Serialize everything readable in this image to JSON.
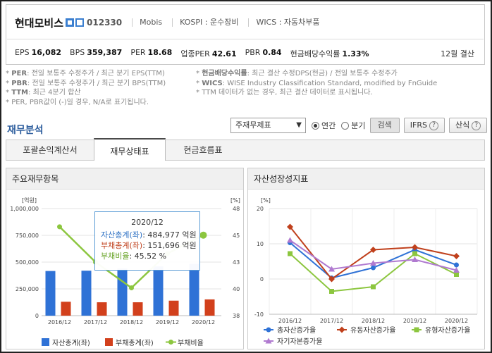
{
  "header": {
    "company": "현대모비스",
    "code": "012330",
    "meta": [
      "Mobis",
      "KOSPI : 운수장비",
      "WICS : 자동차부품"
    ],
    "metrics": [
      {
        "label": "EPS",
        "value": "16,082"
      },
      {
        "label": "BPS",
        "value": "359,387"
      },
      {
        "label": "PER",
        "value": "18.68"
      },
      {
        "label": "업종PER",
        "value": "42.61"
      },
      {
        "label": "PBR",
        "value": "0.84"
      },
      {
        "label": "현금배당수익률",
        "value": "1.33%"
      }
    ],
    "settlement": "12월 결산"
  },
  "notes": {
    "left": [
      {
        "key": "PER",
        "text": ": 전일 보통주 수정주가 / 최근 분기 EPS(TTM)"
      },
      {
        "key": "PBR",
        "text": ": 전일 보통주 수정주가 / 최근 분기 BPS(TTM)"
      },
      {
        "key": "TTM",
        "text": ": 최근 4분기 합산"
      },
      {
        "key": "",
        "text": "PER, PBR값이 (-)일 경우, N/A로 표기됩니다."
      }
    ],
    "right": [
      {
        "key": "현금배당수익률",
        "text": ": 최근 결산 수정DPS(현금) / 전일 보통주 수정주가"
      },
      {
        "key": "WICS",
        "text": ": WISE Industry Classification Standard, modified by FnGuide"
      },
      {
        "key": "",
        "text": "TTM 데이터가 없는 경우, 최근 결산 데이터로 표시됩니다."
      }
    ]
  },
  "section_title": "재무분석",
  "controls": {
    "select_value": "주재무제표",
    "radio_annual": "연간",
    "radio_quarter": "분기",
    "search": "검색",
    "ifrs": "IFRS",
    "calc": "산식"
  },
  "tabs": [
    "포괄손익계산서",
    "재무상태표",
    "현금흐름표"
  ],
  "active_tab": 1,
  "left_chart_title": "주요재무항목",
  "right_chart_title": "자산성장성지표",
  "tooltip": {
    "date": "2020/12",
    "assets_label": "자산총계(좌)",
    "assets_value": ": 484,977",
    "liab_label": "부채총계(좌)",
    "liab_value": ": 151,696",
    "ratio_label": "부채비율",
    "ratio_value": ":      45.52 %",
    "unit": "억원"
  },
  "chart_data": [
    {
      "type": "bar",
      "title": "주요재무항목",
      "categories": [
        "2016/12",
        "2017/12",
        "2018/12",
        "2019/12",
        "2020/12"
      ],
      "y_left_label": "[억원]",
      "y_right_label": "[%]",
      "y_left_ticks": [
        "1,000,000",
        "750,000",
        "500,000",
        "250,000",
        "0"
      ],
      "y_right_ticks": [
        "48",
        "45",
        "43",
        "40",
        "38"
      ],
      "ylim_left": [
        0,
        1000000
      ],
      "ylim_right": [
        38,
        48
      ],
      "series": [
        {
          "name": "자산총계(좌)",
          "kind": "bar",
          "color": "#2f72d6",
          "values": [
            417000,
            420000,
            440000,
            460000,
            484977
          ]
        },
        {
          "name": "부채총계(좌)",
          "kind": "bar",
          "color": "#d2401c",
          "values": [
            130000,
            125000,
            125000,
            140000,
            151696
          ]
        },
        {
          "name": "부채비율",
          "kind": "line",
          "color": "#8cc63f",
          "values": [
            46.3,
            43.0,
            40.6,
            43.8,
            45.52
          ]
        }
      ]
    },
    {
      "type": "line",
      "title": "자산성장성지표",
      "categories": [
        "2016/12",
        "2017/12",
        "2018/12",
        "2019/12",
        "2020/12"
      ],
      "y_label": "[%]",
      "ylim": [
        -10,
        20
      ],
      "y_ticks": [
        "20",
        "10",
        "0",
        "-10"
      ],
      "series": [
        {
          "name": "총자산증가율",
          "color": "#2f72d6",
          "marker": "circle",
          "values": [
            10.3,
            0.3,
            3.2,
            8.3,
            4.0
          ]
        },
        {
          "name": "유동자산증가율",
          "color": "#c0401c",
          "marker": "diamond",
          "values": [
            14.8,
            0.0,
            8.3,
            9.0,
            6.5
          ]
        },
        {
          "name": "유형자산증가율",
          "color": "#8cc63f",
          "marker": "square",
          "values": [
            7.2,
            -3.5,
            -2.2,
            7.2,
            1.3
          ]
        },
        {
          "name": "자기자본증가율",
          "color": "#b07ad0",
          "marker": "triangle",
          "values": [
            11.0,
            2.8,
            4.5,
            5.5,
            2.5
          ]
        }
      ]
    }
  ]
}
